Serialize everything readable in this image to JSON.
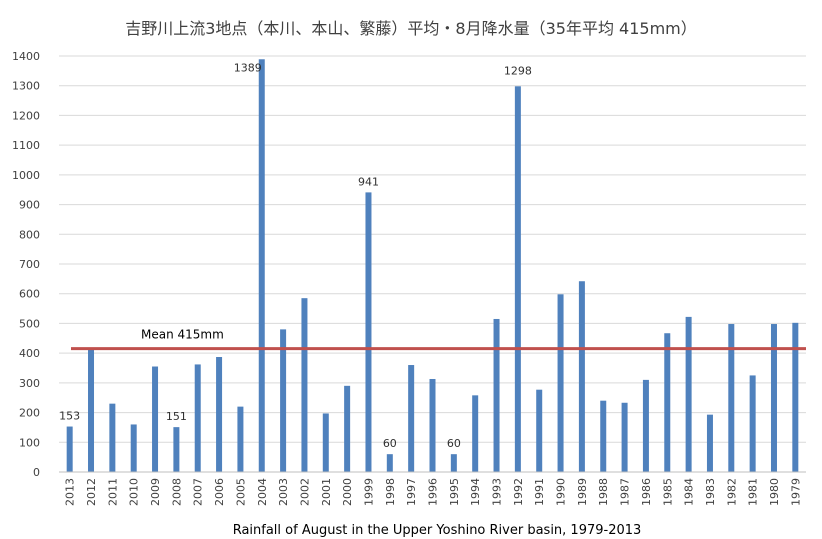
{
  "chart_data": {
    "type": "bar",
    "title": "吉野川上流3地点（本川、本山、繁藤）平均・8月降水量（35年平均 415mm）",
    "caption": "Rainfall of August in the Upper Yoshino River basin, 1979-2013",
    "categories": [
      "2013",
      "2012",
      "2011",
      "2010",
      "2009",
      "2008",
      "2007",
      "2006",
      "2005",
      "2004",
      "2003",
      "2002",
      "2001",
      "2000",
      "1999",
      "1998",
      "1997",
      "1996",
      "1995",
      "1994",
      "1993",
      "1992",
      "1991",
      "1990",
      "1989",
      "1988",
      "1987",
      "1986",
      "1985",
      "1984",
      "1983",
      "1982",
      "1981",
      "1980",
      "1979"
    ],
    "values": [
      153,
      412,
      230,
      160,
      355,
      151,
      362,
      387,
      220,
      1389,
      480,
      585,
      197,
      290,
      941,
      60,
      360,
      313,
      60,
      258,
      515,
      1298,
      277,
      598,
      642,
      240,
      233,
      310,
      467,
      522,
      193,
      498,
      325,
      498,
      502
    ],
    "data_labels": [
      {
        "category": "2013",
        "text": "153"
      },
      {
        "category": "2008",
        "text": "151"
      },
      {
        "category": "2004",
        "text": "1389"
      },
      {
        "category": "1999",
        "text": "941"
      },
      {
        "category": "1998",
        "text": "60"
      },
      {
        "category": "1995",
        "text": "60"
      },
      {
        "category": "1992",
        "text": "1298"
      }
    ],
    "mean": {
      "value": 415,
      "label": "Mean 415mm"
    },
    "ylim": [
      0,
      1400
    ],
    "yticks": [
      0,
      100,
      200,
      300,
      400,
      500,
      600,
      700,
      800,
      900,
      1000,
      1100,
      1200,
      1300,
      1400
    ],
    "grid": true,
    "colors": {
      "bar": "#4f81bd",
      "mean_line": "#c0504d",
      "grid": "#d9d9d9",
      "axis": "#bfbfbf"
    }
  }
}
